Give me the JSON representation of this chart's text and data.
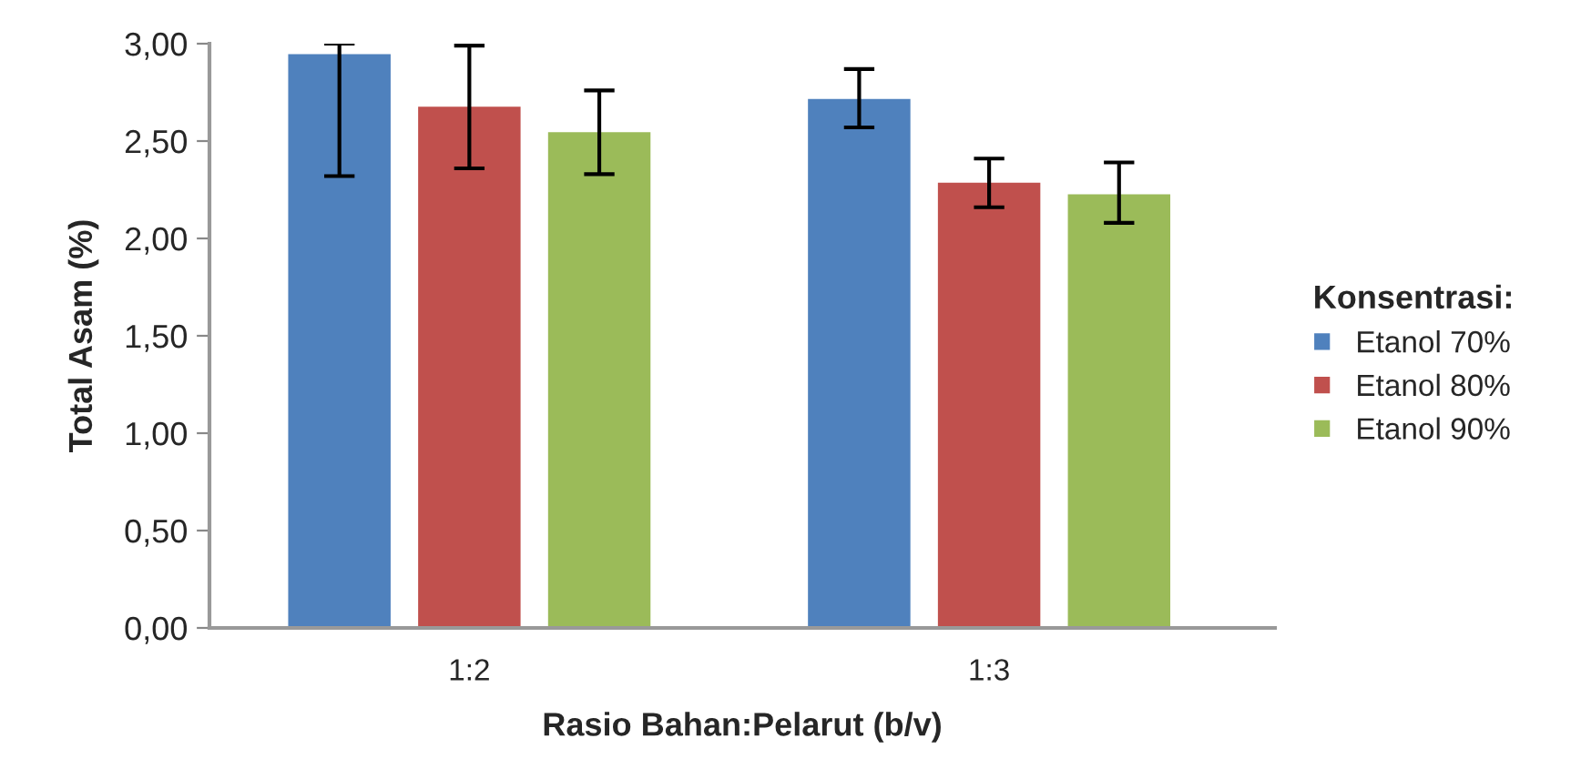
{
  "chart_data": {
    "type": "bar",
    "categories": [
      "1:2",
      "1:3"
    ],
    "xlabel": "Rasio Bahan:Pelarut (b/v)",
    "ylabel": "Total Asam (%)",
    "legend_title": "Konsentrasi:",
    "ylim": [
      0,
      3.0
    ],
    "yticks": [
      {
        "value": 0,
        "label": "0,00"
      },
      {
        "value": 0.5,
        "label": "0,50"
      },
      {
        "value": 1.0,
        "label": "1,00"
      },
      {
        "value": 1.5,
        "label": "1,50"
      },
      {
        "value": 2.0,
        "label": "2,00"
      },
      {
        "value": 2.5,
        "label": "2,50"
      },
      {
        "value": 3.0,
        "label": "3,00"
      }
    ],
    "grid": false,
    "legend": "right",
    "series": [
      {
        "name": "Etanol 70%",
        "color": "#4f81bd",
        "values": [
          2.95,
          2.72
        ],
        "errors": [
          [
            2.32,
            3.0
          ],
          [
            2.57,
            2.87
          ]
        ]
      },
      {
        "name": "Etanol 80%",
        "color": "#c0504d",
        "values": [
          2.68,
          2.29
        ],
        "errors": [
          [
            2.36,
            2.99
          ],
          [
            2.16,
            2.41
          ]
        ]
      },
      {
        "name": "Etanol 90%",
        "color": "#9bbb59",
        "values": [
          2.55,
          2.23
        ],
        "errors": [
          [
            2.33,
            2.76
          ],
          [
            2.08,
            2.39
          ]
        ]
      }
    ]
  }
}
